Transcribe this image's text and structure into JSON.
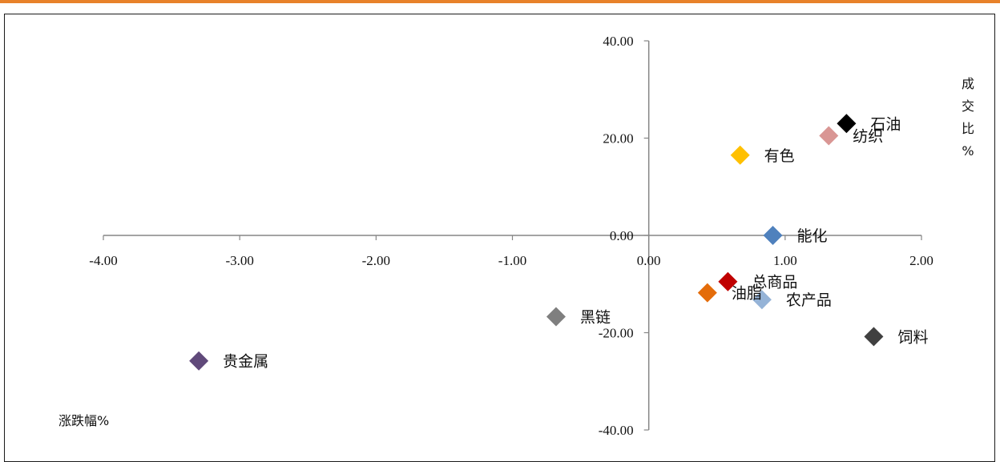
{
  "colors": {
    "top_rule": "#e8822a",
    "axis": "#868686",
    "border": "#1a1a1a"
  },
  "chart_data": {
    "type": "scatter",
    "title": "",
    "xlabel": "涨跌幅%",
    "ylabel": "成交比%",
    "xlim": [
      -4,
      2
    ],
    "ylim": [
      -40,
      40
    ],
    "x_ticks": [
      "-4.00",
      "-3.00",
      "-2.00",
      "-1.00",
      "0.00",
      "1.00",
      "2.00"
    ],
    "y_ticks": [
      "40.00",
      "20.00",
      "0.00",
      "-20.00",
      "-40.00"
    ],
    "grid": false,
    "legend": "none",
    "points": [
      {
        "label": "石油",
        "x": 1.45,
        "y": 23.0,
        "color": "#000000"
      },
      {
        "label": "纺织",
        "x": 1.32,
        "y": 20.5,
        "color": "#d99694"
      },
      {
        "label": "有色",
        "x": 0.67,
        "y": 16.5,
        "color": "#ffc000"
      },
      {
        "label": "能化",
        "x": 0.91,
        "y": 0.0,
        "color": "#4f81bd"
      },
      {
        "label": "总商品",
        "x": 0.58,
        "y": -9.5,
        "color": "#c00000"
      },
      {
        "label": "油脂",
        "x": 0.43,
        "y": -11.8,
        "color": "#e46c0a"
      },
      {
        "label": "农产品",
        "x": 0.83,
        "y": -13.2,
        "color": "#95b3d7"
      },
      {
        "label": "黑链",
        "x": -0.68,
        "y": -16.7,
        "color": "#7f7f7f"
      },
      {
        "label": "饲料",
        "x": 1.65,
        "y": -20.8,
        "color": "#404040"
      },
      {
        "label": "贵金属",
        "x": -3.3,
        "y": -25.8,
        "color": "#60497a"
      }
    ]
  }
}
